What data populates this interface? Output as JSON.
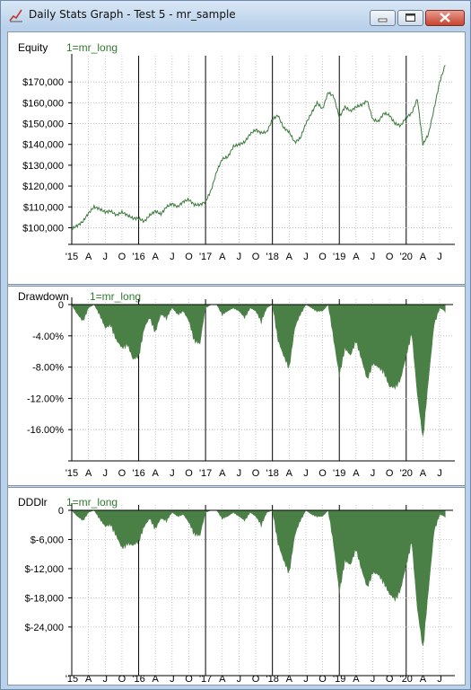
{
  "window": {
    "title": "Daily Stats Graph - Test 5 - mr_sample"
  },
  "colors": {
    "series": "#3a7a3a",
    "fill": "#4a7f46",
    "grid": "#b5b5b5"
  },
  "x_axis_labels": [
    "'15",
    "A",
    "J",
    "O",
    "'16",
    "A",
    "J",
    "O",
    "'17",
    "A",
    "J",
    "O",
    "'18",
    "A",
    "J",
    "O",
    "'19",
    "A",
    "J",
    "O",
    "'20",
    "A",
    "J"
  ],
  "panels": [
    {
      "title": "Equity",
      "legend": "1=mr_long",
      "ytick_labels": [
        "$170,000",
        "$160,000",
        "$150,000",
        "$140,000",
        "$130,000",
        "$120,000",
        "$110,000",
        "$100,000"
      ]
    },
    {
      "title": "Drawdown",
      "legend": "1=mr_long",
      "ytick_labels": [
        "0",
        "-4.00%",
        "-8.00%",
        "-12.00%",
        "-16.00%"
      ]
    },
    {
      "title": "DDDlr",
      "legend": "1=mr_long",
      "ytick_labels": [
        "0",
        "$-6,000",
        "$-12,000",
        "$-18,000",
        "$-24,000"
      ]
    }
  ],
  "chart_data": [
    {
      "type": "line",
      "title": "Equity",
      "series": [
        {
          "name": "1=mr_long",
          "x": [
            "2015-01",
            "2015-02",
            "2015-03",
            "2015-04",
            "2015-05",
            "2015-06",
            "2015-07",
            "2015-08",
            "2015-09",
            "2015-10",
            "2015-11",
            "2015-12",
            "2016-01",
            "2016-02",
            "2016-03",
            "2016-04",
            "2016-05",
            "2016-06",
            "2016-07",
            "2016-08",
            "2016-09",
            "2016-10",
            "2016-11",
            "2016-12",
            "2017-01",
            "2017-02",
            "2017-03",
            "2017-04",
            "2017-05",
            "2017-06",
            "2017-07",
            "2017-08",
            "2017-09",
            "2017-10",
            "2017-11",
            "2017-12",
            "2018-01",
            "2018-02",
            "2018-03",
            "2018-04",
            "2018-05",
            "2018-06",
            "2018-07",
            "2018-08",
            "2018-09",
            "2018-10",
            "2018-11",
            "2018-12",
            "2019-01",
            "2019-02",
            "2019-03",
            "2019-04",
            "2019-05",
            "2019-06",
            "2019-07",
            "2019-08",
            "2019-09",
            "2019-10",
            "2019-11",
            "2019-12",
            "2020-01",
            "2020-02",
            "2020-03",
            "2020-04",
            "2020-05",
            "2020-06",
            "2020-07",
            "2020-08"
          ],
          "values": [
            99500,
            101000,
            103000,
            107000,
            110000,
            109000,
            107500,
            108000,
            106000,
            107500,
            106000,
            104500,
            104500,
            103000,
            106000,
            108000,
            106500,
            110000,
            111500,
            110000,
            112500,
            113500,
            111000,
            111000,
            112500,
            118000,
            127000,
            133000,
            134000,
            139000,
            140000,
            141000,
            145000,
            147000,
            145500,
            146000,
            152000,
            154000,
            148000,
            146000,
            141000,
            143000,
            150000,
            155000,
            160000,
            157000,
            165000,
            163000,
            153000,
            158000,
            156000,
            158000,
            159000,
            161000,
            152000,
            151000,
            155000,
            154000,
            150000,
            149000,
            153000,
            155000,
            162000,
            140000,
            145000,
            157000,
            170000,
            178000
          ]
        }
      ],
      "ylim": [
        92000,
        180000
      ]
    },
    {
      "type": "area",
      "title": "Drawdown",
      "series": [
        {
          "name": "1=mr_long",
          "x": [
            "2015-01",
            "2015-02",
            "2015-03",
            "2015-04",
            "2015-05",
            "2015-06",
            "2015-07",
            "2015-08",
            "2015-09",
            "2015-10",
            "2015-11",
            "2015-12",
            "2016-01",
            "2016-02",
            "2016-03",
            "2016-04",
            "2016-05",
            "2016-06",
            "2016-07",
            "2016-08",
            "2016-09",
            "2016-10",
            "2016-11",
            "2016-12",
            "2017-01",
            "2017-02",
            "2017-03",
            "2017-04",
            "2017-05",
            "2017-06",
            "2017-07",
            "2017-08",
            "2017-09",
            "2017-10",
            "2017-11",
            "2017-12",
            "2018-01",
            "2018-02",
            "2018-03",
            "2018-04",
            "2018-05",
            "2018-06",
            "2018-07",
            "2018-08",
            "2018-09",
            "2018-10",
            "2018-11",
            "2018-12",
            "2019-01",
            "2019-02",
            "2019-03",
            "2019-04",
            "2019-05",
            "2019-06",
            "2019-07",
            "2019-08",
            "2019-09",
            "2019-10",
            "2019-11",
            "2019-12",
            "2020-01",
            "2020-02",
            "2020-03",
            "2020-04",
            "2020-05",
            "2020-06",
            "2020-07",
            "2020-08"
          ],
          "values": [
            0,
            -1.5,
            -2.5,
            -0.5,
            0,
            -1.5,
            -3.5,
            -3,
            -5,
            -6,
            -5.5,
            -7.5,
            -7,
            -3.5,
            -2,
            -4,
            -1.5,
            -2,
            -0.5,
            -1.5,
            -1,
            -2.5,
            -5,
            -5.5,
            -0.5,
            0,
            0,
            -1.5,
            -1,
            -0.5,
            -1,
            -2,
            -0.5,
            -1,
            -2.5,
            -0.5,
            0,
            -5,
            -7,
            -8.5,
            -3.5,
            -1.5,
            0,
            -0.5,
            -1,
            -1,
            0,
            -5,
            -9.5,
            -6,
            -7,
            -5,
            -7.5,
            -10,
            -8,
            -8.5,
            -9,
            -11,
            -11,
            -10,
            -7,
            -4,
            -12,
            -17.5,
            -10,
            -3,
            -0.5,
            -1
          ]
        }
      ],
      "ylim": [
        -20,
        0
      ]
    },
    {
      "type": "area",
      "title": "DDDlr",
      "series": [
        {
          "name": "1=mr_long",
          "x": [
            "2015-01",
            "2015-02",
            "2015-03",
            "2015-04",
            "2015-05",
            "2015-06",
            "2015-07",
            "2015-08",
            "2015-09",
            "2015-10",
            "2015-11",
            "2015-12",
            "2016-01",
            "2016-02",
            "2016-03",
            "2016-04",
            "2016-05",
            "2016-06",
            "2016-07",
            "2016-08",
            "2016-09",
            "2016-10",
            "2016-11",
            "2016-12",
            "2017-01",
            "2017-02",
            "2017-03",
            "2017-04",
            "2017-05",
            "2017-06",
            "2017-07",
            "2017-08",
            "2017-09",
            "2017-10",
            "2017-11",
            "2017-12",
            "2018-01",
            "2018-02",
            "2018-03",
            "2018-04",
            "2018-05",
            "2018-06",
            "2018-07",
            "2018-08",
            "2018-09",
            "2018-10",
            "2018-11",
            "2018-12",
            "2019-01",
            "2019-02",
            "2019-03",
            "2019-04",
            "2019-05",
            "2019-06",
            "2019-07",
            "2019-08",
            "2019-09",
            "2019-10",
            "2019-11",
            "2019-12",
            "2020-01",
            "2020-02",
            "2020-03",
            "2020-04",
            "2020-05",
            "2020-06",
            "2020-07",
            "2020-08"
          ],
          "values": [
            0,
            -1500,
            -2500,
            -500,
            0,
            -2000,
            -4000,
            -3500,
            -6000,
            -8500,
            -7500,
            -8000,
            -7000,
            -4000,
            -2000,
            -4500,
            -2000,
            -2500,
            -500,
            -1500,
            -1000,
            -3000,
            -5500,
            -6000,
            -500,
            0,
            0,
            -2000,
            -1500,
            -500,
            -1500,
            -2500,
            -500,
            -1500,
            -3500,
            -500,
            0,
            -7500,
            -11000,
            -13500,
            -6000,
            -2500,
            0,
            -1000,
            -1500,
            -1500,
            0,
            -8000,
            -17500,
            -11000,
            -12000,
            -8500,
            -13000,
            -16500,
            -13500,
            -14000,
            -15500,
            -18000,
            -19000,
            -17000,
            -12000,
            -7000,
            -21000,
            -29000,
            -17000,
            -5000,
            -1000,
            -1500
          ]
        }
      ],
      "ylim": [
        -34000,
        0
      ]
    }
  ]
}
